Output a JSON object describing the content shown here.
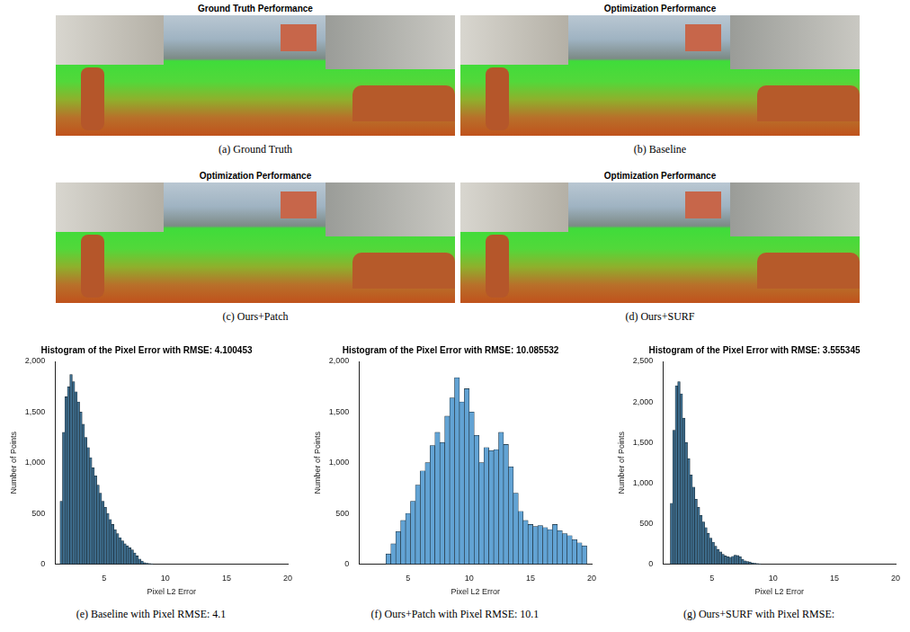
{
  "image_panels": [
    {
      "title": "Ground Truth Performance",
      "caption": "(a) Ground Truth"
    },
    {
      "title": "Optimization Performance",
      "caption": "(b) Baseline"
    },
    {
      "title": "Optimization Performance",
      "caption": "(c) Ours+Patch"
    },
    {
      "title": "Optimization Performance",
      "caption": "(d) Ours+SURF"
    }
  ],
  "chart_data": [
    {
      "type": "histogram",
      "title": "Histogram of the Pixel Error with RMSE: 4.100453",
      "x_label": "Pixel L2 Error",
      "y_label": "Number of Points",
      "caption": "(e) Baseline with Pixel RMSE: 4.1",
      "bins": [
        1.4,
        1.6,
        1.8,
        2.0,
        2.2,
        2.4,
        2.6,
        2.8,
        3.0,
        3.2,
        3.4,
        3.6,
        3.8,
        4.0,
        4.2,
        4.4,
        4.6,
        4.8,
        5.0,
        5.2,
        5.4,
        5.6,
        5.8,
        6.0,
        6.2,
        6.4,
        6.6,
        6.8,
        7.0,
        7.2,
        7.4,
        7.6,
        7.8,
        8.0,
        8.2,
        8.4,
        8.6,
        8.8,
        9.0
      ],
      "counts": [
        620,
        1300,
        1650,
        1750,
        1870,
        1800,
        1700,
        1600,
        1500,
        1380,
        1250,
        1150,
        1050,
        950,
        870,
        780,
        700,
        620,
        560,
        500,
        440,
        390,
        340,
        300,
        260,
        230,
        200,
        180,
        160,
        140,
        110,
        80,
        50,
        30,
        15,
        8,
        4,
        2
      ],
      "color": "#3d6c8c",
      "xlim": [
        1,
        20
      ],
      "xticks": [
        5,
        10,
        15,
        20
      ],
      "ylim": [
        0,
        2000
      ],
      "yticks": [
        0,
        500,
        1000,
        1500,
        2000
      ],
      "grid": false
    },
    {
      "type": "histogram",
      "title": "Histogram of the Pixel Error with RMSE: 10.085532",
      "x_label": "Pixel L2 Error",
      "y_label": "Number of Points",
      "caption": "(f) Ours+Patch with Pixel RMSE: 10.1",
      "bins": [
        3.2,
        3.6,
        4.0,
        4.4,
        4.8,
        5.2,
        5.6,
        6.0,
        6.4,
        6.8,
        7.2,
        7.6,
        8.0,
        8.4,
        8.8,
        9.2,
        9.6,
        10.0,
        10.4,
        10.8,
        11.2,
        11.6,
        12.0,
        12.4,
        12.8,
        13.2,
        13.6,
        14.0,
        14.4,
        14.8,
        15.2,
        15.6,
        16.0,
        16.4,
        16.8,
        17.2,
        17.6,
        18.0,
        18.4,
        18.8,
        19.2,
        19.6
      ],
      "counts": [
        100,
        200,
        320,
        430,
        500,
        620,
        780,
        920,
        1000,
        1170,
        1300,
        1200,
        1460,
        1640,
        1840,
        1600,
        1730,
        1500,
        1270,
        1000,
        1150,
        1120,
        1130,
        1300,
        1180,
        960,
        700,
        520,
        430,
        390,
        370,
        380,
        360,
        340,
        390,
        330,
        300,
        280,
        240,
        210,
        180
      ],
      "color": "#62a3d4",
      "xlim": [
        1,
        20
      ],
      "xticks": [
        5,
        10,
        15,
        20
      ],
      "ylim": [
        0,
        2000
      ],
      "yticks": [
        0,
        500,
        1000,
        1500,
        2000
      ],
      "grid": false
    },
    {
      "type": "histogram",
      "title": "Histogram of the Pixel Error with RMSE: 3.555345",
      "x_label": "Pixel L2 Error",
      "y_label": "Number of Points",
      "caption": "(g) Ours+SURF with Pixel RMSE:",
      "bins": [
        1.6,
        1.8,
        2.0,
        2.2,
        2.4,
        2.6,
        2.8,
        3.0,
        3.2,
        3.4,
        3.6,
        3.8,
        4.0,
        4.2,
        4.4,
        4.6,
        4.8,
        5.0,
        5.2,
        5.4,
        5.6,
        5.8,
        6.0,
        6.2,
        6.4,
        6.6,
        6.8,
        7.0,
        7.2,
        7.4,
        7.6,
        7.8,
        8.0,
        8.2,
        8.4,
        8.6,
        8.8,
        9.0
      ],
      "counts": [
        750,
        1650,
        2200,
        2250,
        2100,
        1800,
        1500,
        1300,
        1100,
        950,
        800,
        700,
        600,
        520,
        450,
        380,
        320,
        270,
        220,
        180,
        150,
        120,
        100,
        90,
        85,
        95,
        110,
        105,
        90,
        60,
        40,
        30,
        25,
        15,
        10,
        5,
        3
      ],
      "color": "#3d6c8c",
      "xlim": [
        1,
        20
      ],
      "xticks": [
        5,
        10,
        15,
        20
      ],
      "ylim": [
        0,
        2500
      ],
      "yticks": [
        0,
        500,
        1000,
        1500,
        2000,
        2500
      ],
      "grid": false
    }
  ]
}
